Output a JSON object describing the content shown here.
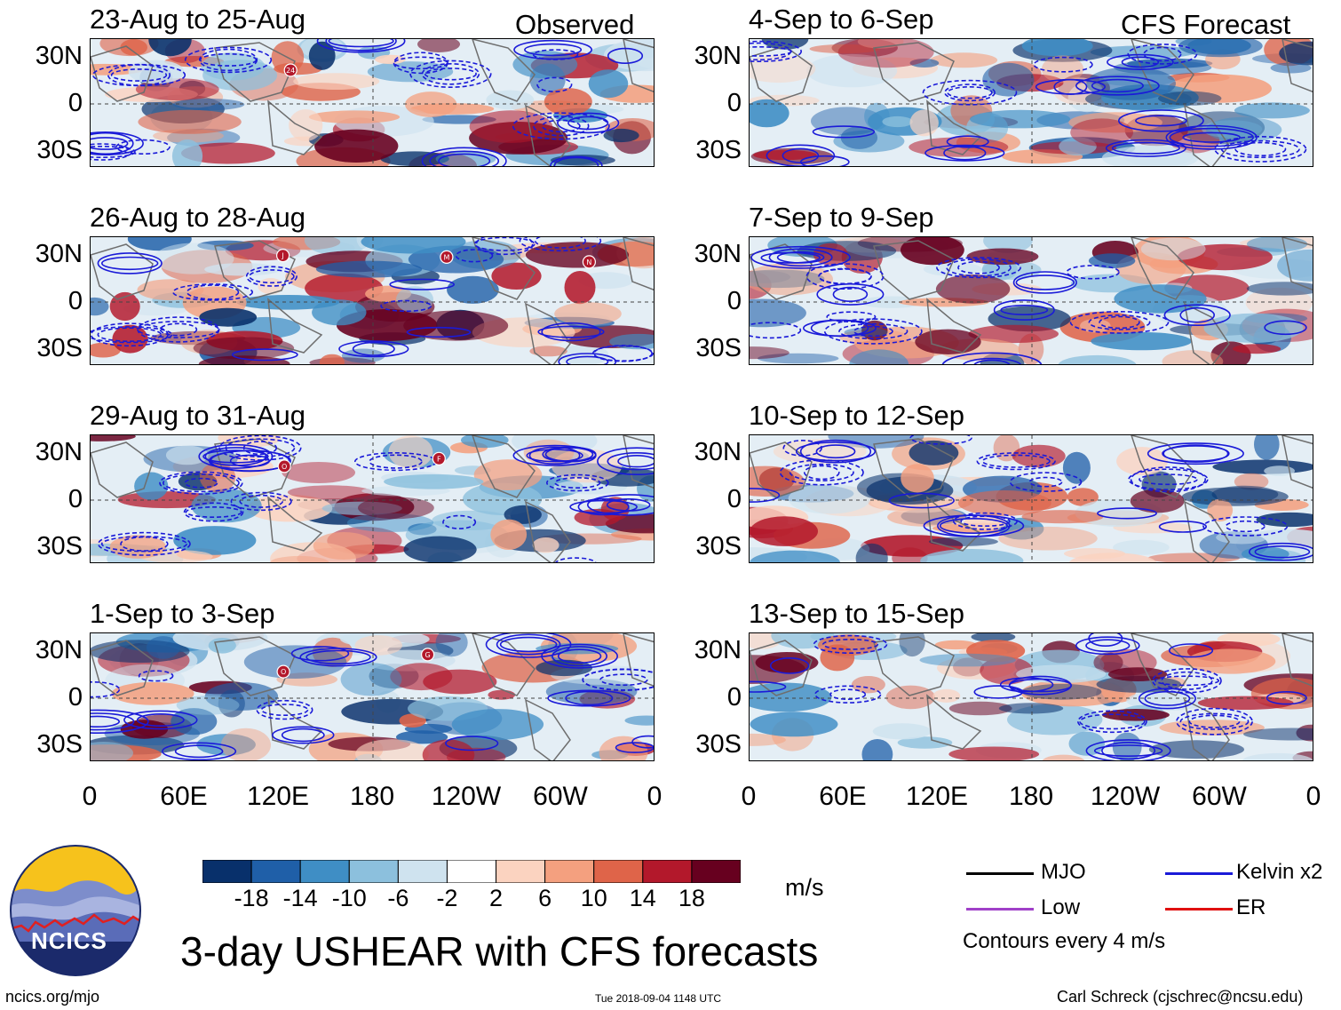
{
  "observed_label": "Observed",
  "forecast_label": "CFS Forecast",
  "panels": [
    {
      "title": "23-Aug to 25-Aug",
      "column": "observed",
      "storms": [
        "24"
      ]
    },
    {
      "title": "26-Aug to 28-Aug",
      "column": "observed",
      "storms": [
        "J",
        "M",
        "N"
      ]
    },
    {
      "title": "29-Aug to 31-Aug",
      "column": "observed",
      "storms": [
        "O",
        "F"
      ]
    },
    {
      "title": "1-Sep to 3-Sep",
      "column": "observed",
      "storms": [
        "O",
        "G"
      ]
    },
    {
      "title": "4-Sep to 6-Sep",
      "column": "forecast",
      "storms": []
    },
    {
      "title": "7-Sep to 9-Sep",
      "column": "forecast",
      "storms": []
    },
    {
      "title": "10-Sep to 12-Sep",
      "column": "forecast",
      "storms": []
    },
    {
      "title": "13-Sep to 15-Sep",
      "column": "forecast",
      "storms": []
    }
  ],
  "y_ticks": [
    "30N",
    "0",
    "30S"
  ],
  "x_ticks": [
    "0",
    "60E",
    "120E",
    "180",
    "120W",
    "60W",
    "0"
  ],
  "colorbar": {
    "colors": [
      "#08306b",
      "#1f5fa8",
      "#3f8ec5",
      "#8cc0dd",
      "#cfe3ef",
      "#ffffff",
      "#fbd3c0",
      "#f4a07f",
      "#df6449",
      "#b3182b",
      "#67001f"
    ],
    "labels": [
      "-18",
      "-14",
      "-10",
      "-6",
      "-2",
      "2",
      "6",
      "10",
      "14",
      "18"
    ],
    "units": "m/s"
  },
  "legend": {
    "items": [
      {
        "label": "MJO",
        "color": "#000000"
      },
      {
        "label": "Kelvin x2",
        "color": "#1a1ad8"
      },
      {
        "label": "Low",
        "color": "#a040c8"
      },
      {
        "label": "ER",
        "color": "#e01010"
      }
    ],
    "note": "Contours every 4 m/s"
  },
  "main_title": "3-day USHEAR with CFS forecasts",
  "logo_text": "NCICS",
  "footer": {
    "left": "ncics.org/mjo",
    "center": "Tue 2018-09-04 1148 UTC",
    "right": "Carl Schreck (cjschrec@ncsu.edu)"
  }
}
